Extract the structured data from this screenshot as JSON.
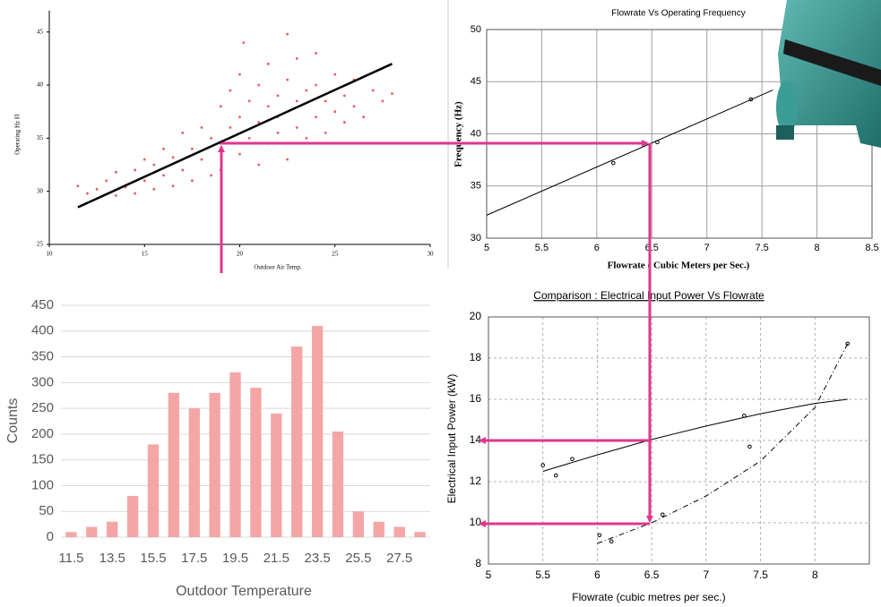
{
  "chart_data": [
    {
      "type": "scatter",
      "x_label": "Outdoor Air Temp.",
      "y_label": "Operating Hz Fl",
      "xlim": [
        10,
        30
      ],
      "xticks": [
        10,
        15,
        20,
        25,
        30
      ],
      "ylim": [
        25,
        47
      ],
      "yticks": [
        25,
        30,
        35,
        40,
        45
      ],
      "grid": false,
      "series": [
        {
          "color": "#f05a5a",
          "x": [
            11.5,
            12,
            12.5,
            13,
            13.5,
            13.5,
            14,
            14.5,
            14.5,
            15,
            15,
            15.5,
            15.5,
            16,
            16,
            16.5,
            16.5,
            17,
            17,
            17.5,
            17.5,
            18,
            18,
            18.5,
            18.5,
            19,
            19,
            19,
            19.5,
            19.5,
            20,
            20,
            20,
            20.2,
            20.5,
            20.5,
            21,
            21,
            21,
            21.5,
            21.5,
            21.5,
            22,
            22,
            22,
            22.5,
            22.5,
            22.5,
            23,
            23,
            23,
            23.5,
            23.5,
            24,
            24,
            24,
            24.5,
            24.5,
            25,
            25,
            25.5,
            25.5,
            26,
            26,
            26.5,
            27,
            27.5,
            28
          ],
          "values": [
            30.5,
            29.8,
            30.2,
            31,
            29.6,
            31.8,
            30.4,
            32,
            29.8,
            31,
            33,
            30.2,
            32.5,
            31.5,
            34,
            30.5,
            33.2,
            32,
            35.5,
            31,
            34,
            33,
            36,
            31.5,
            35,
            34.5,
            38,
            32,
            36,
            39.5,
            33.5,
            37,
            41,
            44,
            35,
            38.5,
            32.5,
            36.5,
            40,
            34.5,
            38,
            42,
            35.5,
            39,
            37,
            33,
            40.5,
            44.8,
            36,
            38.5,
            42.5,
            35,
            39.5,
            37,
            40,
            43,
            35.5,
            38.5,
            37.5,
            41,
            36.5,
            39,
            38,
            40.5,
            37,
            39.5,
            38.5,
            39.2
          ]
        }
      ],
      "trend": {
        "color": "#000000",
        "x": [
          11.5,
          28
        ],
        "values": [
          28.5,
          42
        ]
      }
    },
    {
      "type": "line",
      "title": "Flowrate Vs Operating Frequency",
      "x_label": "Flowrate ( Cubic Meters per Sec.)",
      "y_label": "Frequency (Hz)",
      "xlim": [
        5,
        8.5
      ],
      "xticks": [
        5,
        5.5,
        6,
        6.5,
        7,
        7.5,
        8,
        8.5
      ],
      "ylim": [
        30,
        50
      ],
      "yticks": [
        30,
        35,
        40,
        45,
        50
      ],
      "grid": true,
      "series": [
        {
          "color": "#000000",
          "x": [
            5,
            7.6
          ],
          "values": [
            32.2,
            44.2
          ]
        }
      ],
      "points": {
        "x": [
          6.15,
          6.55,
          7.4
        ],
        "values": [
          37.2,
          39.2,
          43.3
        ]
      }
    },
    {
      "type": "bar",
      "x_label": "Outdoor Temperature",
      "y_label": "Counts",
      "color": "#f4a6a6",
      "categories": [
        "11.5",
        null,
        "13.5",
        null,
        "15.5",
        null,
        "17.5",
        null,
        "19.5",
        null,
        "21.5",
        null,
        "23.5",
        null,
        "25.5",
        null,
        "27.5",
        null
      ],
      "values": [
        10,
        20,
        30,
        80,
        180,
        280,
        250,
        280,
        320,
        290,
        240,
        370,
        410,
        205,
        50,
        30,
        20,
        10
      ],
      "ylim": [
        0,
        450
      ],
      "yticks": [
        0,
        50,
        100,
        150,
        200,
        250,
        300,
        350,
        400,
        450
      ],
      "grid": true
    },
    {
      "type": "line",
      "title": "Comparison : Electrical Input Power Vs Flowrate",
      "x_label": "Flowrate (cubic metres per sec.)",
      "y_label": "Electrical Input Power (kW)",
      "xlim": [
        5,
        8.5
      ],
      "xticks": [
        5,
        5.5,
        6,
        6.5,
        7,
        7.5,
        8
      ],
      "ylim": [
        8,
        20
      ],
      "yticks": [
        8,
        10,
        12,
        14,
        16,
        18,
        20
      ],
      "grid": true,
      "series": [
        {
          "color": "#000000",
          "x": [
            5.5,
            6,
            6.5,
            7,
            7.5,
            8,
            8.3
          ],
          "values": [
            12.5,
            13.3,
            14.05,
            14.7,
            15.3,
            15.8,
            16.0
          ]
        },
        {
          "color": "#000000",
          "dashed": true,
          "x": [
            6.0,
            6.5,
            7,
            7.5,
            8,
            8.3
          ],
          "values": [
            9.0,
            10.0,
            11.3,
            13.0,
            15.6,
            18.7
          ]
        }
      ],
      "points": {
        "x": [
          5.5,
          5.62,
          5.77,
          7.35,
          6.02,
          6.13,
          6.6,
          7.4,
          8.3
        ],
        "values": [
          12.8,
          12.3,
          13.1,
          15.2,
          9.4,
          9.1,
          10.4,
          13.7,
          18.7
        ]
      }
    }
  ]
}
